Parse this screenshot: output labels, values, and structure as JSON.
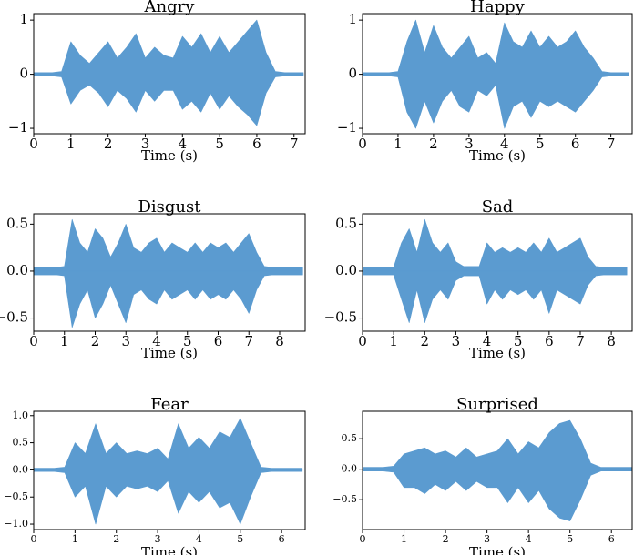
{
  "chart_data": [
    {
      "type": "waveform",
      "title": "Angry",
      "xlabel": "Time (s)",
      "color": "#5b9bd0",
      "x": [
        0,
        0.25,
        0.5,
        0.75,
        1,
        1.25,
        1.5,
        1.75,
        2,
        2.25,
        2.5,
        2.75,
        3,
        3.25,
        3.5,
        3.75,
        4,
        4.25,
        4.5,
        4.75,
        5,
        5.25,
        5.5,
        5.75,
        6,
        6.25,
        6.5,
        6.75,
        7,
        7.25
      ],
      "upper": [
        0.03,
        0.03,
        0.03,
        0.05,
        0.6,
        0.35,
        0.2,
        0.4,
        0.6,
        0.3,
        0.5,
        0.75,
        0.3,
        0.5,
        0.35,
        0.3,
        0.7,
        0.5,
        0.75,
        0.4,
        0.7,
        0.4,
        0.6,
        0.8,
        1.0,
        0.4,
        0.05,
        0.03,
        0.03,
        0.03
      ],
      "lower": [
        -0.03,
        -0.03,
        -0.03,
        -0.05,
        -0.55,
        -0.3,
        -0.2,
        -0.35,
        -0.6,
        -0.3,
        -0.45,
        -0.7,
        -0.3,
        -0.5,
        -0.3,
        -0.3,
        -0.65,
        -0.5,
        -0.7,
        -0.35,
        -0.65,
        -0.4,
        -0.6,
        -0.75,
        -0.95,
        -0.35,
        -0.05,
        -0.03,
        -0.03,
        -0.03
      ],
      "xlim": [
        0,
        7.3
      ],
      "xticks": [
        0,
        1,
        2,
        3,
        4,
        5,
        6,
        7
      ],
      "ylim": [
        -1.1,
        1.12
      ],
      "yticks": [
        {
          "value": -1,
          "label": "−1"
        },
        0,
        1
      ]
    },
    {
      "type": "waveform",
      "title": "Happy",
      "xlabel": "Time (s)",
      "color": "#5b9bd0",
      "x": [
        0,
        0.25,
        0.5,
        0.75,
        1,
        1.25,
        1.5,
        1.75,
        2,
        2.25,
        2.5,
        2.75,
        3,
        3.25,
        3.5,
        3.75,
        4,
        4.25,
        4.5,
        4.75,
        5,
        5.25,
        5.5,
        5.75,
        6,
        6.25,
        6.5,
        6.75,
        7,
        7.25,
        7.5
      ],
      "upper": [
        0.03,
        0.03,
        0.03,
        0.03,
        0.05,
        0.6,
        1.0,
        0.4,
        0.9,
        0.5,
        0.3,
        0.5,
        0.7,
        0.3,
        0.4,
        0.2,
        0.95,
        0.6,
        0.5,
        0.8,
        0.5,
        0.7,
        0.5,
        0.6,
        0.8,
        0.5,
        0.3,
        0.05,
        0.03,
        0.03,
        0.03
      ],
      "lower": [
        -0.03,
        -0.03,
        -0.03,
        -0.03,
        -0.05,
        -0.7,
        -1.0,
        -0.5,
        -0.9,
        -0.5,
        -0.3,
        -0.6,
        -0.7,
        -0.3,
        -0.4,
        -0.2,
        -1.0,
        -0.6,
        -0.5,
        -0.8,
        -0.5,
        -0.6,
        -0.5,
        -0.6,
        -0.7,
        -0.5,
        -0.3,
        -0.05,
        -0.03,
        -0.03,
        -0.03
      ],
      "xlim": [
        0,
        7.6
      ],
      "xticks": [
        0,
        1,
        2,
        3,
        4,
        5,
        6,
        7
      ],
      "ylim": [
        -1.1,
        1.12
      ],
      "yticks": [
        {
          "value": -1,
          "label": "−1"
        },
        0,
        1
      ]
    },
    {
      "type": "waveform",
      "title": "Disgust",
      "xlabel": "Time (s)",
      "color": "#5b9bd0",
      "x": [
        0,
        0.25,
        0.5,
        0.75,
        1,
        1.25,
        1.5,
        1.75,
        2,
        2.25,
        2.5,
        2.75,
        3,
        3.25,
        3.5,
        3.75,
        4,
        4.25,
        4.5,
        4.75,
        5,
        5.25,
        5.5,
        5.75,
        6,
        6.25,
        6.5,
        6.75,
        7,
        7.25,
        7.5,
        7.75,
        8,
        8.25,
        8.5,
        8.75
      ],
      "upper": [
        0.04,
        0.04,
        0.04,
        0.04,
        0.05,
        0.55,
        0.3,
        0.2,
        0.45,
        0.35,
        0.15,
        0.3,
        0.5,
        0.25,
        0.2,
        0.3,
        0.35,
        0.2,
        0.3,
        0.25,
        0.2,
        0.3,
        0.2,
        0.3,
        0.25,
        0.3,
        0.2,
        0.3,
        0.4,
        0.2,
        0.05,
        0.04,
        0.04,
        0.04,
        0.04,
        0.04
      ],
      "lower": [
        -0.04,
        -0.04,
        -0.04,
        -0.04,
        -0.05,
        -0.6,
        -0.35,
        -0.2,
        -0.5,
        -0.35,
        -0.15,
        -0.35,
        -0.55,
        -0.25,
        -0.2,
        -0.3,
        -0.35,
        -0.2,
        -0.3,
        -0.25,
        -0.2,
        -0.3,
        -0.2,
        -0.3,
        -0.25,
        -0.3,
        -0.2,
        -0.3,
        -0.45,
        -0.2,
        -0.05,
        -0.04,
        -0.04,
        -0.04,
        -0.04,
        -0.04
      ],
      "xlim": [
        0,
        8.83
      ],
      "xticks": [
        0,
        1,
        2,
        3,
        4,
        5,
        6,
        7,
        8
      ],
      "ylim": [
        -0.64,
        0.61
      ],
      "yticks": [
        {
          "value": -0.5,
          "label": "−0.5"
        },
        {
          "value": 0,
          "label": "0.0"
        },
        0.5
      ]
    },
    {
      "type": "waveform",
      "title": "Sad",
      "xlabel": "Time (s)",
      "color": "#5b9bd0",
      "x": [
        0,
        0.25,
        0.5,
        0.75,
        1,
        1.25,
        1.5,
        1.75,
        2,
        2.25,
        2.5,
        2.75,
        3,
        3.25,
        3.5,
        3.75,
        4,
        4.25,
        4.5,
        4.75,
        5,
        5.25,
        5.5,
        5.75,
        6,
        6.25,
        6.5,
        6.75,
        7,
        7.25,
        7.5,
        7.75,
        8,
        8.25,
        8.5
      ],
      "upper": [
        0.04,
        0.04,
        0.04,
        0.04,
        0.04,
        0.3,
        0.45,
        0.2,
        0.55,
        0.3,
        0.2,
        0.3,
        0.1,
        0.05,
        0.05,
        0.05,
        0.3,
        0.2,
        0.25,
        0.2,
        0.25,
        0.2,
        0.3,
        0.2,
        0.35,
        0.2,
        0.25,
        0.3,
        0.35,
        0.15,
        0.05,
        0.04,
        0.04,
        0.04,
        0.04
      ],
      "lower": [
        -0.04,
        -0.04,
        -0.04,
        -0.04,
        -0.04,
        -0.3,
        -0.55,
        -0.2,
        -0.55,
        -0.3,
        -0.2,
        -0.3,
        -0.1,
        -0.05,
        -0.05,
        -0.05,
        -0.35,
        -0.2,
        -0.3,
        -0.2,
        -0.25,
        -0.2,
        -0.3,
        -0.2,
        -0.45,
        -0.2,
        -0.25,
        -0.3,
        -0.35,
        -0.15,
        -0.05,
        -0.04,
        -0.04,
        -0.04,
        -0.04
      ],
      "xlim": [
        0,
        8.67
      ],
      "xticks": [
        0,
        1,
        2,
        3,
        4,
        5,
        6,
        7,
        8
      ],
      "ylim": [
        -0.64,
        0.61
      ],
      "yticks": [
        {
          "value": -0.5,
          "label": "−0.5"
        },
        {
          "value": 0,
          "label": "0.0"
        },
        0.5
      ]
    },
    {
      "type": "waveform",
      "title": "Fear",
      "xlabel": "Time (s)",
      "color": "#5b9bd0",
      "x": [
        0,
        0.25,
        0.5,
        0.75,
        1,
        1.25,
        1.5,
        1.75,
        2,
        2.25,
        2.5,
        2.75,
        3,
        3.25,
        3.5,
        3.75,
        4,
        4.25,
        4.5,
        4.75,
        5,
        5.25,
        5.5,
        5.75,
        6,
        6.25,
        6.5
      ],
      "upper": [
        0.03,
        0.03,
        0.03,
        0.05,
        0.5,
        0.3,
        0.85,
        0.3,
        0.5,
        0.3,
        0.35,
        0.3,
        0.4,
        0.2,
        0.85,
        0.4,
        0.6,
        0.4,
        0.7,
        0.6,
        0.95,
        0.5,
        0.05,
        0.03,
        0.03,
        0.03,
        0.03
      ],
      "lower": [
        -0.03,
        -0.03,
        -0.03,
        -0.05,
        -0.5,
        -0.3,
        -1.0,
        -0.3,
        -0.5,
        -0.3,
        -0.35,
        -0.3,
        -0.4,
        -0.2,
        -0.8,
        -0.4,
        -0.6,
        -0.4,
        -0.7,
        -0.6,
        -1.0,
        -0.5,
        -0.05,
        -0.03,
        -0.03,
        -0.03,
        -0.03
      ],
      "xlim": [
        0,
        6.57
      ],
      "xticks": [
        0,
        1,
        2,
        3,
        4,
        5,
        6
      ],
      "ylim": [
        -1.1,
        1.08
      ],
      "yticks": [
        {
          "value": -1,
          "label": "−1.0"
        },
        {
          "value": -0.5,
          "label": "−0.5"
        },
        {
          "value": 0,
          "label": "0.0"
        },
        0.5,
        {
          "value": 1,
          "label": "1.0"
        }
      ]
    },
    {
      "type": "waveform",
      "title": "Surprised",
      "xlabel": "Time (s)",
      "color": "#5b9bd0",
      "x": [
        0,
        0.25,
        0.5,
        0.75,
        1,
        1.25,
        1.5,
        1.75,
        2,
        2.25,
        2.5,
        2.75,
        3,
        3.25,
        3.5,
        3.75,
        4,
        4.25,
        4.5,
        4.75,
        5,
        5.25,
        5.5,
        5.75,
        6,
        6.25,
        6.5
      ],
      "upper": [
        0.03,
        0.03,
        0.03,
        0.05,
        0.25,
        0.3,
        0.35,
        0.25,
        0.3,
        0.2,
        0.35,
        0.2,
        0.25,
        0.3,
        0.5,
        0.25,
        0.45,
        0.35,
        0.6,
        0.75,
        0.8,
        0.5,
        0.1,
        0.03,
        0.03,
        0.03,
        0.03
      ],
      "lower": [
        -0.03,
        -0.03,
        -0.03,
        -0.05,
        -0.3,
        -0.3,
        -0.4,
        -0.25,
        -0.35,
        -0.2,
        -0.35,
        -0.2,
        -0.3,
        -0.3,
        -0.55,
        -0.3,
        -0.55,
        -0.35,
        -0.65,
        -0.8,
        -0.85,
        -0.5,
        -0.1,
        -0.03,
        -0.03,
        -0.03,
        -0.03
      ],
      "xlim": [
        0,
        6.5
      ],
      "xticks": [
        0,
        1,
        2,
        3,
        4,
        5,
        6
      ],
      "ylim": [
        -0.99,
        0.95
      ],
      "yticks": [
        {
          "value": -0.5,
          "label": "−0.5"
        },
        {
          "value": 0,
          "label": "0.0"
        },
        0.5
      ]
    }
  ]
}
